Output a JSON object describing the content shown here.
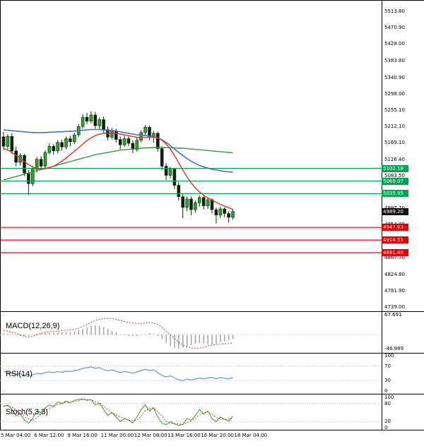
{
  "chart_data": {
    "type": "candlestick",
    "price_ticks": [
      5513.8,
      5470.9,
      5428.0,
      5383.8,
      5340.9,
      5298.0,
      5255.1,
      5212.1,
      5169.1,
      5126.4,
      5083.5,
      5040.6,
      4997.7,
      4954.8,
      4911.9,
      4867.7,
      4824.8,
      4781.9,
      4739.0
    ],
    "current_price": {
      "value": 4989.2,
      "label": "4989.20"
    },
    "levels_green": [
      {
        "value": 5102.18,
        "label": "5102.18"
      },
      {
        "value": 5069.07,
        "label": "5069.07"
      },
      {
        "value": 5035.95,
        "label": "5035.95"
      }
    ],
    "levels_red": [
      {
        "value": 4947.63,
        "label": "4947.63"
      },
      {
        "value": 4914.51,
        "label": "4914.51"
      },
      {
        "value": 4881.4,
        "label": "4881.40"
      }
    ],
    "date_labels": [
      "5 Mar 04:00",
      "6 Mar 12:00",
      "9 Mar 16:00",
      "11 Mar 00:00",
      "12 Mar 08:00",
      "13 Mar 16:00",
      "16 Mar 20:00",
      "18 Mar 04:00"
    ],
    "candles": [
      [
        5185,
        5198,
        5150,
        5160
      ],
      [
        5160,
        5192,
        5152,
        5186
      ],
      [
        5186,
        5194,
        5140,
        5148
      ],
      [
        5148,
        5160,
        5108,
        5118
      ],
      [
        5118,
        5142,
        5110,
        5136
      ],
      [
        5136,
        5140,
        5082,
        5090
      ],
      [
        5090,
        5098,
        5032,
        5062
      ],
      [
        5062,
        5108,
        5055,
        5100
      ],
      [
        5100,
        5132,
        5092,
        5126
      ],
      [
        5126,
        5134,
        5098,
        5108
      ],
      [
        5108,
        5150,
        5102,
        5144
      ],
      [
        5144,
        5168,
        5138,
        5160
      ],
      [
        5160,
        5166,
        5138,
        5148
      ],
      [
        5148,
        5176,
        5142,
        5170
      ],
      [
        5170,
        5178,
        5148,
        5158
      ],
      [
        5158,
        5186,
        5152,
        5180
      ],
      [
        5180,
        5188,
        5160,
        5172
      ],
      [
        5172,
        5196,
        5166,
        5190
      ],
      [
        5190,
        5218,
        5184,
        5212
      ],
      [
        5212,
        5244,
        5206,
        5236
      ],
      [
        5236,
        5248,
        5218,
        5226
      ],
      [
        5226,
        5252,
        5220,
        5242
      ],
      [
        5242,
        5250,
        5206,
        5214
      ],
      [
        5214,
        5236,
        5204,
        5230
      ],
      [
        5230,
        5238,
        5196,
        5204
      ],
      [
        5204,
        5212,
        5176,
        5184
      ],
      [
        5184,
        5208,
        5178,
        5200
      ],
      [
        5200,
        5206,
        5170,
        5178
      ],
      [
        5178,
        5186,
        5152,
        5164
      ],
      [
        5164,
        5188,
        5158,
        5180
      ],
      [
        5180,
        5186,
        5160,
        5168
      ],
      [
        5168,
        5176,
        5142,
        5152
      ],
      [
        5152,
        5182,
        5146,
        5176
      ],
      [
        5176,
        5202,
        5170,
        5196
      ],
      [
        5196,
        5216,
        5188,
        5210
      ],
      [
        5210,
        5214,
        5176,
        5184
      ],
      [
        5184,
        5200,
        5170,
        5194
      ],
      [
        5194,
        5198,
        5146,
        5154
      ],
      [
        5154,
        5160,
        5098,
        5108
      ],
      [
        5108,
        5116,
        5072,
        5084
      ],
      [
        5084,
        5106,
        5076,
        5100
      ],
      [
        5100,
        5104,
        5048,
        5058
      ],
      [
        5058,
        5066,
        5018,
        5028
      ],
      [
        5028,
        5036,
        4972,
        5000
      ],
      [
        5000,
        5028,
        4990,
        5022
      ],
      [
        5022,
        5028,
        4980,
        4994
      ],
      [
        4994,
        5018,
        4986,
        5012
      ],
      [
        5012,
        5032,
        5002,
        5026
      ],
      [
        5026,
        5030,
        4994,
        5004
      ],
      [
        5004,
        5026,
        4996,
        5020
      ],
      [
        5020,
        5024,
        4984,
        4994
      ],
      [
        4994,
        5000,
        4958,
        4980
      ],
      [
        4980,
        5002,
        4972,
        4996
      ],
      [
        4996,
        5000,
        4974,
        4984
      ],
      [
        4984,
        4990,
        4960,
        4974
      ],
      [
        4974,
        4996,
        4968,
        4989.2
      ]
    ],
    "ma_blue": [
      5203,
      5202,
      5201,
      5200,
      5199,
      5198,
      5197,
      5196,
      5196,
      5196,
      5196,
      5197,
      5197,
      5198,
      5198,
      5199,
      5199,
      5200,
      5201,
      5202,
      5203,
      5204,
      5204,
      5204,
      5203,
      5202,
      5201,
      5200,
      5198,
      5196,
      5194,
      5192,
      5190,
      5189,
      5188,
      5187,
      5185,
      5182,
      5177,
      5170,
      5162,
      5153,
      5144,
      5136,
      5128,
      5121,
      5115,
      5110,
      5106,
      5103,
      5100,
      5098,
      5096,
      5094,
      5093,
      5092
    ],
    "ma_red": [
      5155,
      5150,
      5144,
      5136,
      5128,
      5120,
      5112,
      5106,
      5102,
      5100,
      5101,
      5104,
      5108,
      5114,
      5121,
      5129,
      5138,
      5147,
      5156,
      5166,
      5175,
      5182,
      5188,
      5192,
      5194,
      5195,
      5195,
      5194,
      5192,
      5190,
      5188,
      5186,
      5184,
      5183,
      5183,
      5184,
      5184,
      5182,
      5176,
      5166,
      5153,
      5136,
      5117,
      5098,
      5080,
      5064,
      5051,
      5040,
      5032,
      5025,
      5019,
      5013,
      5008,
      5003,
      4999,
      4995
    ],
    "ma_green": [
      5072,
      5075,
      5078,
      5081,
      5084,
      5087,
      5090,
      5093,
      5096,
      5099,
      5102,
      5105,
      5108,
      5111,
      5114,
      5117,
      5120,
      5123,
      5126,
      5129,
      5132,
      5135,
      5138,
      5140,
      5142,
      5144,
      5146,
      5148,
      5150,
      5151,
      5152,
      5153,
      5154,
      5155,
      5156,
      5156,
      5157,
      5157,
      5157,
      5157,
      5156,
      5156,
      5155,
      5155,
      5154,
      5153,
      5152,
      5151,
      5150,
      5149,
      5148,
      5147,
      5146,
      5145,
      5144,
      5143
    ],
    "indicators": {
      "macd": {
        "label": "MACD(12,26,9)",
        "axis": [
          {
            "value": 67.691,
            "label": "67.691"
          },
          {
            "value": -46.989,
            "label": "-46.989"
          }
        ],
        "signal": [
          15,
          12,
          8,
          5,
          0,
          -5,
          -8,
          -5,
          0,
          5,
          8,
          10,
          12,
          12,
          14,
          15,
          16,
          18,
          22,
          28,
          35,
          42,
          48,
          52,
          55,
          56,
          55,
          52,
          48,
          45,
          42,
          40,
          38,
          38,
          40,
          42,
          40,
          35,
          25,
          12,
          0,
          -12,
          -25,
          -35,
          -42,
          -45,
          -46,
          -45,
          -42,
          -38,
          -35,
          -33,
          -32,
          -31,
          -30,
          -28
        ],
        "hist": [
          5,
          3,
          0,
          -2,
          -4,
          -5,
          -3,
          0,
          3,
          5,
          6,
          7,
          7,
          8,
          8,
          9,
          10,
          12,
          15,
          20,
          25,
          30,
          32,
          30,
          26,
          20,
          14,
          8,
          2,
          -2,
          -4,
          -5,
          -4,
          -2,
          2,
          5,
          3,
          -5,
          -15,
          -28,
          -38,
          -45,
          -47,
          -45,
          -40,
          -35,
          -30,
          -28,
          -30,
          -32,
          -33,
          -30,
          -26,
          -22,
          -18,
          -15
        ]
      },
      "rsi": {
        "label": "RSI(14)",
        "axis": [
          {
            "value": 100,
            "label": "100"
          },
          {
            "value": 70,
            "label": "70"
          },
          {
            "value": 30,
            "label": "30"
          },
          {
            "value": 0,
            "label": "0"
          }
        ],
        "levels": [
          70,
          30
        ],
        "values": [
          55,
          53,
          50,
          47,
          49,
          44,
          41,
          46,
          50,
          48,
          52,
          54,
          52,
          55,
          53,
          56,
          55,
          57,
          60,
          64,
          66,
          68,
          64,
          66,
          61,
          57,
          60,
          56,
          52,
          55,
          53,
          50,
          54,
          58,
          61,
          58,
          60,
          52,
          44,
          40,
          43,
          37,
          32,
          29,
          34,
          31,
          34,
          37,
          34,
          37,
          38,
          35,
          38,
          36,
          34,
          38
        ]
      },
      "stoch": {
        "label": "Stoch(5,3,3)",
        "axis": [
          {
            "value": 100,
            "label": "100"
          },
          {
            "value": 80,
            "label": "80"
          },
          {
            "value": 20,
            "label": "20"
          },
          {
            "value": 0,
            "label": "0"
          }
        ],
        "levels": [
          80,
          20
        ],
        "k": [
          70,
          75,
          60,
          40,
          45,
          25,
          15,
          30,
          55,
          50,
          65,
          75,
          70,
          85,
          80,
          88,
          82,
          90,
          93,
          95,
          90,
          92,
          75,
          80,
          60,
          40,
          50,
          35,
          20,
          30,
          25,
          15,
          35,
          60,
          75,
          55,
          65,
          35,
          15,
          10,
          20,
          12,
          8,
          10,
          30,
          25,
          40,
          60,
          45,
          55,
          30,
          20,
          35,
          28,
          22,
          38
        ]
      }
    },
    "colors": {
      "up_candle": "#2f9e2f",
      "down_candle": "#131b13",
      "candle_outline": "#0a320a",
      "ma_blue": "#4472c4",
      "ma_red": "#e03224",
      "ma_green": "#3a9a3a",
      "level_green": "#00a550",
      "level_red": "#ff0000",
      "badge_green": "#00a550",
      "badge_red": "#e00000",
      "badge_black": "#111111",
      "macd_signal": "#e03224",
      "macd_hist": "#9e9e9e",
      "rsi_line": "#6699cc",
      "stoch_k": "#2f9e2f",
      "stoch_d": "#e03224"
    }
  }
}
